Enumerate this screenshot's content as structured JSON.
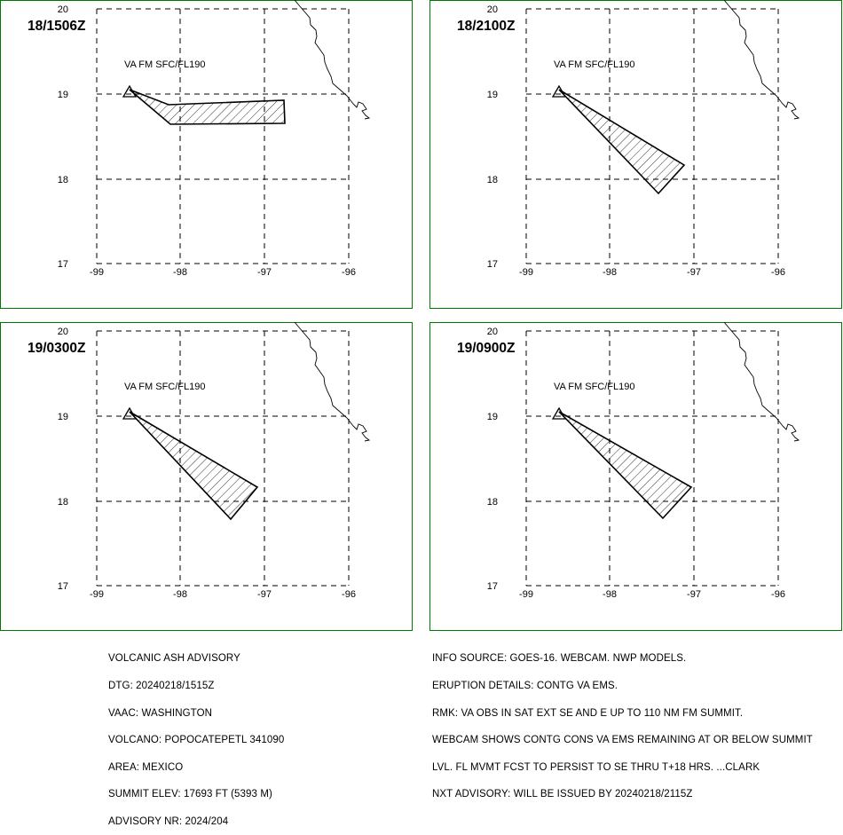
{
  "map": {
    "frame_color": "#007800",
    "x_ticks": [
      "-99",
      "-98",
      "-97",
      "-96"
    ],
    "y_ticks": [
      "20",
      "19",
      "18",
      "17"
    ],
    "layer_label": "VA FM SFC/FL190",
    "volcano_marker": "triangle-icon"
  },
  "panels": [
    {
      "time": "18/1506Z"
    },
    {
      "time": "18/2100Z"
    },
    {
      "time": "19/0300Z"
    },
    {
      "time": "19/0900Z"
    }
  ],
  "advisory_left": [
    "VOLCANIC ASH ADVISORY",
    "DTG: 20240218/1515Z",
    "VAAC: WASHINGTON",
    "VOLCANO: POPOCATEPETL 341090",
    "AREA: MEXICO",
    "SUMMIT ELEV: 17693 FT (5393 M)",
    "ADVISORY NR: 2024/204"
  ],
  "advisory_right": [
    "INFO SOURCE: GOES-16. WEBCAM. NWP MODELS.",
    "ERUPTION DETAILS: CONTG VA EMS.",
    "RMK: VA OBS IN SAT EXT SE AND E UP TO 110 NM FM SUMMIT.",
    "WEBCAM SHOWS CONTG CONS VA EMS REMAINING AT OR BELOW SUMMIT",
    "LVL. FL MVMT FCST TO PERSIST TO SE THRU T+18 HRS. ...CLARK",
    "NXT ADVISORY: WILL BE ISSUED BY 20240218/2115Z"
  ]
}
